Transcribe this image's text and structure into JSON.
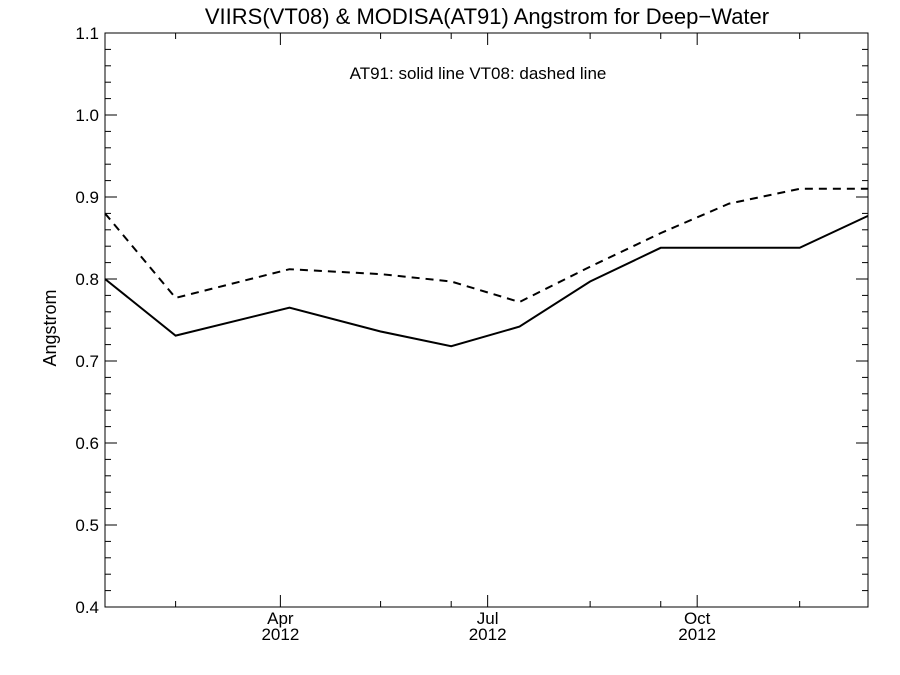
{
  "chart_data": {
    "type": "line",
    "title": "VIIRS(VT08) & MODISA(AT91)  Angstrom for Deep−Water",
    "ylabel": "Angstrom",
    "xlabel": "",
    "legend_text": "AT91: solid line   VT08: dashed line",
    "ylim": [
      0.4,
      1.1
    ],
    "yticks": [
      0.4,
      0.5,
      0.6,
      0.7,
      0.8,
      0.9,
      1.0,
      1.1
    ],
    "ytick_labels": [
      "0.4",
      "0.5",
      "0.6",
      "0.7",
      "0.8",
      "0.9",
      "1.0",
      "1.1"
    ],
    "xlim": [
      "2012-01-15",
      "2012-12-15"
    ],
    "xticks_major": [
      {
        "date": "2012-04-01",
        "month": "Apr",
        "year": "2012"
      },
      {
        "date": "2012-07-01",
        "month": "Jul",
        "year": "2012"
      },
      {
        "date": "2012-10-01",
        "month": "Oct",
        "year": "2012"
      }
    ],
    "xticks_minor": [
      "2012-02-15",
      "2012-05-15",
      "2012-06-15",
      "2012-08-15",
      "2012-09-15",
      "2012-11-15"
    ],
    "x": [
      "2012-01-15",
      "2012-02-15",
      "2012-03-15",
      "2012-04-15",
      "2012-05-15",
      "2012-06-15",
      "2012-07-15",
      "2012-08-15",
      "2012-09-15",
      "2012-10-15",
      "2012-11-15",
      "2012-12-15"
    ],
    "series": [
      {
        "name": "AT91",
        "style": "solid",
        "x": [
          "2012-01-15",
          "2012-02-15",
          "2012-04-05",
          "2012-05-15",
          "2012-06-15",
          "2012-07-15",
          "2012-08-15",
          "2012-09-15",
          "2012-10-15",
          "2012-11-15",
          "2012-12-15"
        ],
        "values": [
          0.8,
          0.731,
          0.765,
          0.736,
          0.718,
          0.742,
          0.797,
          0.838,
          0.838,
          0.838,
          0.877
        ]
      },
      {
        "name": "VT08",
        "style": "dashed",
        "x": [
          "2012-01-15",
          "2012-02-15",
          "2012-04-05",
          "2012-05-15",
          "2012-06-15",
          "2012-07-15",
          "2012-08-15",
          "2012-09-15",
          "2012-10-15",
          "2012-11-15",
          "2012-12-15"
        ],
        "values": [
          0.88,
          0.777,
          0.812,
          0.806,
          0.797,
          0.772,
          0.815,
          0.856,
          0.892,
          0.91,
          0.91
        ]
      }
    ],
    "grid": false,
    "line_color": "#000000",
    "background": "#ffffff"
  }
}
